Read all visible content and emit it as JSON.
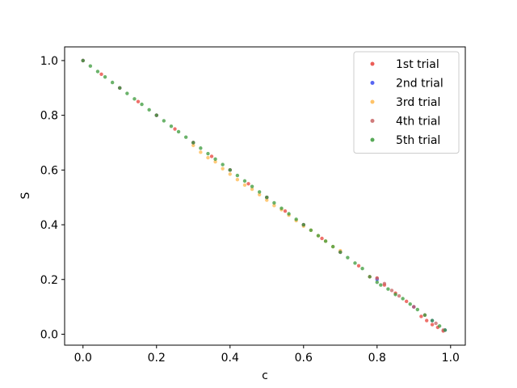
{
  "chart_data": {
    "type": "scatter",
    "title": "",
    "xlabel": "c",
    "ylabel": "S",
    "xlim": [
      -0.05,
      1.04
    ],
    "ylim": [
      -0.04,
      1.05
    ],
    "xticks": [
      0.0,
      0.2,
      0.4,
      0.6,
      0.8,
      1.0
    ],
    "yticks": [
      0.0,
      0.2,
      0.4,
      0.6,
      0.8,
      1.0
    ],
    "xtick_labels": [
      "0.0",
      "0.2",
      "0.4",
      "0.6",
      "0.8",
      "1.0"
    ],
    "ytick_labels": [
      "0.0",
      "0.2",
      "0.4",
      "0.6",
      "0.8",
      "1.0"
    ],
    "grid": false,
    "legend_position": "top-right",
    "series": [
      {
        "name": "1st trial",
        "color": "#e8413a",
        "points": [
          [
            0.0,
            1.0
          ],
          [
            0.05,
            0.95
          ],
          [
            0.1,
            0.9
          ],
          [
            0.15,
            0.85
          ],
          [
            0.2,
            0.8
          ],
          [
            0.25,
            0.75
          ],
          [
            0.3,
            0.7
          ],
          [
            0.35,
            0.65
          ],
          [
            0.4,
            0.6
          ],
          [
            0.45,
            0.55
          ],
          [
            0.5,
            0.5
          ],
          [
            0.55,
            0.45
          ],
          [
            0.6,
            0.4
          ],
          [
            0.65,
            0.35
          ],
          [
            0.7,
            0.3
          ],
          [
            0.75,
            0.25
          ],
          [
            0.78,
            0.21
          ],
          [
            0.8,
            0.205
          ],
          [
            0.82,
            0.18
          ],
          [
            0.85,
            0.15
          ],
          [
            0.88,
            0.12
          ],
          [
            0.9,
            0.1
          ],
          [
            0.92,
            0.065
          ],
          [
            0.935,
            0.05
          ],
          [
            0.95,
            0.035
          ],
          [
            0.965,
            0.025
          ],
          [
            0.98,
            0.012
          ]
        ]
      },
      {
        "name": "2nd trial",
        "color": "#3b4bf0",
        "points": [
          [
            0.0,
            1.0
          ],
          [
            0.1,
            0.9
          ],
          [
            0.2,
            0.8
          ],
          [
            0.3,
            0.7
          ],
          [
            0.4,
            0.6
          ],
          [
            0.5,
            0.5
          ],
          [
            0.6,
            0.4
          ],
          [
            0.7,
            0.3
          ],
          [
            0.8,
            0.2
          ],
          [
            0.9,
            0.1
          ],
          [
            0.95,
            0.05
          ],
          [
            0.985,
            0.015
          ]
        ]
      },
      {
        "name": "3rd trial",
        "color": "#ffb84d",
        "points": [
          [
            0.3,
            0.69
          ],
          [
            0.32,
            0.665
          ],
          [
            0.34,
            0.645
          ],
          [
            0.36,
            0.63
          ],
          [
            0.38,
            0.605
          ],
          [
            0.4,
            0.585
          ],
          [
            0.42,
            0.565
          ],
          [
            0.44,
            0.545
          ],
          [
            0.46,
            0.53
          ],
          [
            0.48,
            0.51
          ],
          [
            0.5,
            0.49
          ],
          [
            0.52,
            0.47
          ],
          [
            0.54,
            0.455
          ],
          [
            0.56,
            0.435
          ],
          [
            0.58,
            0.415
          ],
          [
            0.6,
            0.395
          ],
          [
            0.62,
            0.38
          ],
          [
            0.64,
            0.36
          ],
          [
            0.66,
            0.34
          ],
          [
            0.68,
            0.32
          ],
          [
            0.7,
            0.305
          ]
        ]
      },
      {
        "name": "4th trial",
        "color": "#c86464",
        "points": [
          [
            0.0,
            1.0
          ],
          [
            0.1,
            0.9
          ],
          [
            0.2,
            0.8
          ],
          [
            0.3,
            0.7
          ],
          [
            0.4,
            0.6
          ],
          [
            0.5,
            0.5
          ],
          [
            0.6,
            0.4
          ],
          [
            0.7,
            0.3
          ],
          [
            0.8,
            0.205
          ],
          [
            0.82,
            0.185
          ],
          [
            0.84,
            0.16
          ],
          [
            0.86,
            0.14
          ],
          [
            0.9,
            0.1
          ],
          [
            0.93,
            0.07
          ],
          [
            0.96,
            0.04
          ],
          [
            0.98,
            0.015
          ]
        ]
      },
      {
        "name": "5th trial",
        "color": "#3a9a3a",
        "points": [
          [
            0.0,
            1.0
          ],
          [
            0.02,
            0.98
          ],
          [
            0.04,
            0.96
          ],
          [
            0.06,
            0.94
          ],
          [
            0.08,
            0.92
          ],
          [
            0.1,
            0.9
          ],
          [
            0.12,
            0.88
          ],
          [
            0.14,
            0.86
          ],
          [
            0.16,
            0.84
          ],
          [
            0.18,
            0.82
          ],
          [
            0.2,
            0.8
          ],
          [
            0.22,
            0.78
          ],
          [
            0.24,
            0.76
          ],
          [
            0.26,
            0.74
          ],
          [
            0.28,
            0.72
          ],
          [
            0.3,
            0.7
          ],
          [
            0.32,
            0.68
          ],
          [
            0.34,
            0.66
          ],
          [
            0.36,
            0.64
          ],
          [
            0.38,
            0.62
          ],
          [
            0.4,
            0.6
          ],
          [
            0.42,
            0.58
          ],
          [
            0.44,
            0.56
          ],
          [
            0.46,
            0.54
          ],
          [
            0.48,
            0.52
          ],
          [
            0.5,
            0.5
          ],
          [
            0.52,
            0.48
          ],
          [
            0.54,
            0.46
          ],
          [
            0.56,
            0.44
          ],
          [
            0.58,
            0.42
          ],
          [
            0.6,
            0.4
          ],
          [
            0.62,
            0.38
          ],
          [
            0.64,
            0.36
          ],
          [
            0.66,
            0.34
          ],
          [
            0.68,
            0.32
          ],
          [
            0.7,
            0.3
          ],
          [
            0.72,
            0.28
          ],
          [
            0.74,
            0.26
          ],
          [
            0.76,
            0.24
          ],
          [
            0.78,
            0.21
          ],
          [
            0.8,
            0.19
          ],
          [
            0.81,
            0.18
          ],
          [
            0.83,
            0.165
          ],
          [
            0.85,
            0.145
          ],
          [
            0.87,
            0.13
          ],
          [
            0.89,
            0.11
          ],
          [
            0.91,
            0.09
          ],
          [
            0.93,
            0.07
          ],
          [
            0.95,
            0.05
          ],
          [
            0.97,
            0.03
          ],
          [
            0.985,
            0.015
          ]
        ]
      }
    ]
  }
}
